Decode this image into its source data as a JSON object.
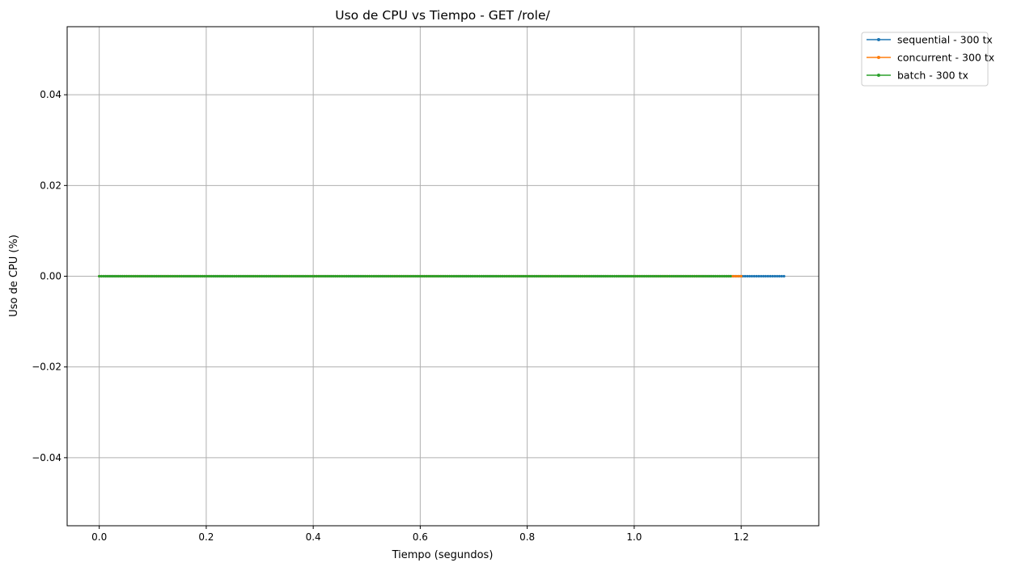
{
  "chart_data": {
    "type": "line",
    "title": "Uso de CPU vs Tiempo - GET /role/",
    "xlabel": "Tiempo (segundos)",
    "ylabel": "Uso de CPU (%)",
    "xlim": [
      -0.06,
      1.345
    ],
    "ylim": [
      -0.055,
      0.055
    ],
    "xticks": [
      0.0,
      0.2,
      0.4,
      0.6,
      0.8,
      1.0,
      1.2
    ],
    "xtick_labels": [
      "0.0",
      "0.2",
      "0.4",
      "0.6",
      "0.8",
      "1.0",
      "1.2"
    ],
    "yticks": [
      -0.04,
      -0.02,
      0.0,
      0.02,
      0.04
    ],
    "ytick_labels": [
      "−0.04",
      "−0.02",
      "0.00",
      "0.02",
      "0.04"
    ],
    "grid": true,
    "legend_position": "outside-top-right",
    "series": [
      {
        "name": "sequential - 300 tx",
        "color": "#1f77b4",
        "x_start": 0.0,
        "x_end": 1.28,
        "points": 300,
        "y": 0.0
      },
      {
        "name": "concurrent - 300 tx",
        "color": "#ff7f0e",
        "x_start": 0.0,
        "x_end": 1.2,
        "points": 300,
        "y": 0.0
      },
      {
        "name": "batch - 300 tx",
        "color": "#2ca02c",
        "x_start": 0.0,
        "x_end": 1.18,
        "points": 300,
        "y": 0.0
      }
    ]
  }
}
